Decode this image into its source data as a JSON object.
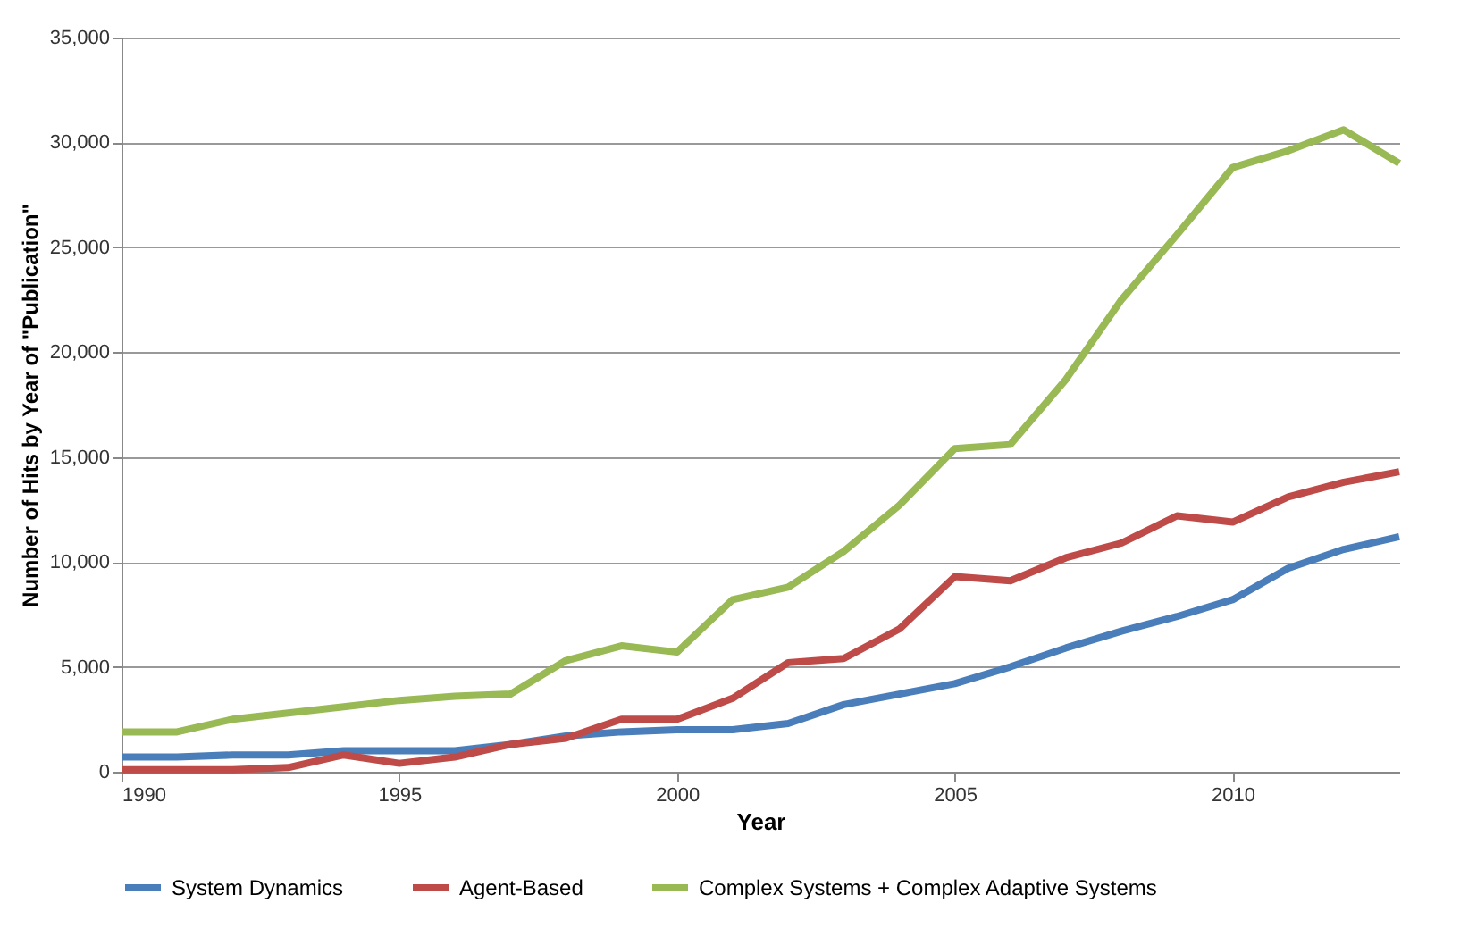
{
  "chart_data": {
    "type": "line",
    "xlabel": "Year",
    "ylabel": "Number of Hits by Year of \"Publication\"",
    "x": [
      1990,
      1991,
      1992,
      1993,
      1994,
      1995,
      1996,
      1997,
      1998,
      1999,
      2000,
      2001,
      2002,
      2003,
      2004,
      2005,
      2006,
      2007,
      2008,
      2009,
      2010,
      2011,
      2012,
      2013
    ],
    "series": [
      {
        "name": "System Dynamics",
        "color": "#4a7ebb",
        "values": [
          700,
          700,
          800,
          800,
          1000,
          1000,
          1000,
          1300,
          1700,
          1900,
          2000,
          2000,
          2300,
          3200,
          3700,
          4200,
          5000,
          5900,
          6700,
          7400,
          8200,
          9700,
          10600,
          11200
        ]
      },
      {
        "name": "Agent-Based",
        "color": "#be4b48",
        "values": [
          100,
          100,
          100,
          200,
          800,
          400,
          700,
          1300,
          1600,
          2500,
          2500,
          3500,
          5200,
          5400,
          6800,
          9300,
          9100,
          10200,
          10900,
          12200,
          11900,
          13100,
          13800,
          14300
        ]
      },
      {
        "name": "Complex Systems + Complex Adaptive Systems",
        "color": "#98b954",
        "values": [
          1900,
          1900,
          2500,
          2800,
          3100,
          3400,
          3600,
          3700,
          5300,
          6000,
          5700,
          8200,
          8800,
          10500,
          12700,
          15400,
          15600,
          18700,
          22500,
          25600,
          28800,
          29600,
          30600,
          29000
        ]
      }
    ],
    "xlim": [
      1990,
      2013
    ],
    "xticks": [
      1990,
      1995,
      2000,
      2005,
      2010
    ],
    "ylim": [
      0,
      35000
    ],
    "yticks": [
      {
        "value": 0,
        "label": "0"
      },
      {
        "value": 5000,
        "label": "5,000"
      },
      {
        "value": 10000,
        "label": "10,000"
      },
      {
        "value": 15000,
        "label": "15,000"
      },
      {
        "value": 20000,
        "label": "20,000"
      },
      {
        "value": 25000,
        "label": "25,000"
      },
      {
        "value": 30000,
        "label": "30,000"
      },
      {
        "value": 35000,
        "label": "35,000"
      }
    ],
    "grid": "y",
    "legend": "bottom",
    "marker": "none",
    "line_style": "solid"
  }
}
